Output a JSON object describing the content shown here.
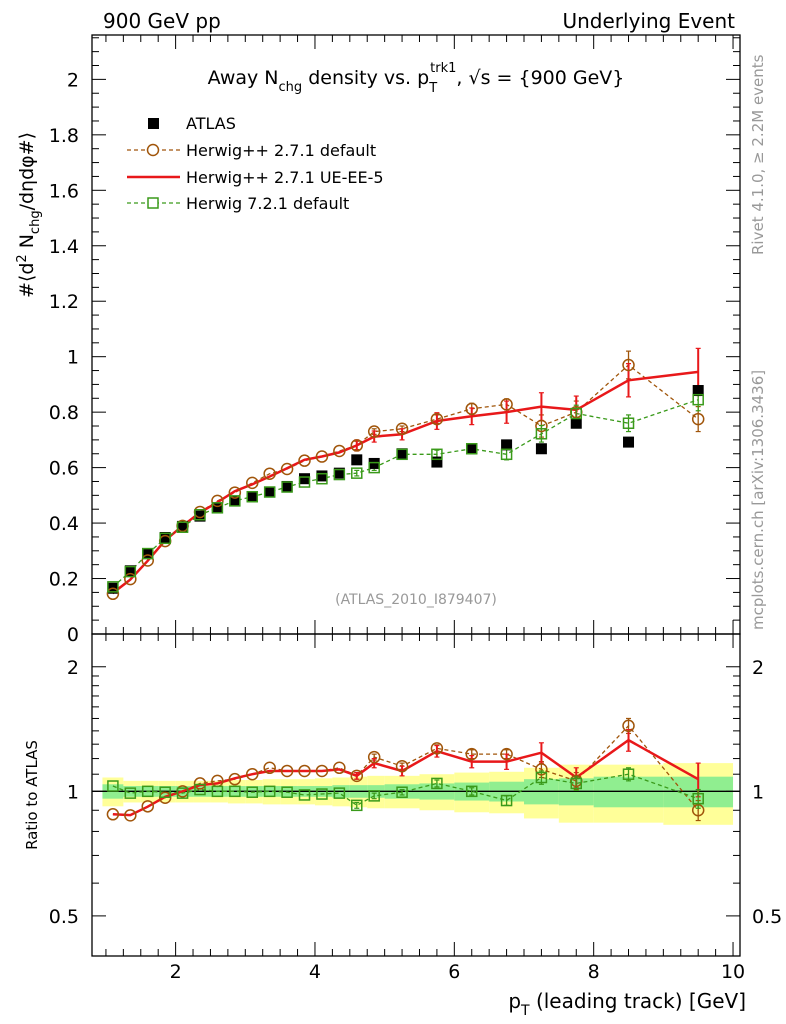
{
  "header": {
    "left": "900 GeV pp",
    "right": "Underlying Event"
  },
  "side_labels": {
    "rivet": "Rivet 4.1.0, ≥ 2.2M events",
    "mcplots": "mcplots.cern.ch [arXiv:1306.3436]"
  },
  "colors": {
    "atlas": "#000000",
    "herwig_default": "#a0550a",
    "herwig_ue": "#e8181a",
    "herwig72": "#3a9a1a",
    "band_green": "#90ee90",
    "band_yellow": "#ffff99"
  },
  "chart_data": [
    {
      "type": "scatter",
      "panel": "main",
      "title": "Away N_chg density vs. p_T^trk1, √s = {900 GeV}",
      "title_parts": {
        "a": "Away N",
        "chg": "chg",
        "b": " density vs. p",
        "T": "T",
        "trk1": "trk1",
        "c": ", √s = {900 GeV}"
      },
      "ylabel": "#⟨d² N_chg/dηdφ#⟩",
      "ylabel_parts": {
        "a": "#⟨d",
        "two": "2",
        "b": " N",
        "chg": "chg",
        "c": "/dηdφ#⟩"
      },
      "watermark": "(ATLAS_2010_I879407)",
      "xlim": [
        0.8,
        10.1
      ],
      "ylim": [
        0,
        2.16
      ],
      "y_ticks": [
        0,
        0.2,
        0.4,
        0.6,
        0.8,
        1,
        1.2,
        1.4,
        1.6,
        1.8,
        2
      ],
      "y_tick_labels": [
        "0",
        "0.2",
        "0.4",
        "0.6",
        "0.8",
        "1",
        "1.2",
        "1.4",
        "1.6",
        "1.8",
        "2"
      ],
      "x": [
        1.1,
        1.35,
        1.6,
        1.85,
        2.1,
        2.35,
        2.6,
        2.85,
        3.1,
        3.35,
        3.6,
        3.85,
        4.1,
        4.35,
        4.6,
        4.85,
        5.25,
        5.75,
        6.25,
        6.75,
        7.25,
        7.75,
        8.5,
        9.5
      ],
      "series": [
        {
          "name": "ATLAS",
          "marker": "filled-square",
          "line": "none",
          "values": [
            0.165,
            0.228,
            0.29,
            0.348,
            0.388,
            0.425,
            0.455,
            0.48,
            0.495,
            0.512,
            0.532,
            0.56,
            0.57,
            0.58,
            0.628,
            0.615,
            0.65,
            0.62,
            0.668,
            0.682,
            0.668,
            0.76,
            0.692,
            0.878
          ],
          "errors": [
            0,
            0,
            0,
            0,
            0,
            0,
            0,
            0,
            0,
            0,
            0,
            0,
            0,
            0,
            0,
            0,
            0,
            0,
            0,
            0,
            0,
            0,
            0,
            0
          ]
        },
        {
          "name": "Herwig++ 2.7.1 default",
          "marker": "open-circle",
          "line": "dashed",
          "values": [
            0.145,
            0.198,
            0.265,
            0.335,
            0.39,
            0.44,
            0.48,
            0.51,
            0.545,
            0.578,
            0.595,
            0.625,
            0.64,
            0.66,
            0.68,
            0.73,
            0.74,
            0.775,
            0.812,
            0.828,
            0.75,
            0.8,
            0.97,
            0.775
          ],
          "errors": [
            0,
            0,
            0,
            0,
            0,
            0,
            0,
            0,
            0,
            0,
            0,
            0,
            0,
            0,
            0.015,
            0.01,
            0.01,
            0.015,
            0.02,
            0.02,
            0.04,
            0.04,
            0.05,
            0.045
          ]
        },
        {
          "name": "Herwig++ 2.7.1 UE-EE-5",
          "marker": "none",
          "line": "solid",
          "values": [
            0.148,
            0.196,
            0.264,
            0.338,
            0.39,
            0.438,
            0.475,
            0.515,
            0.54,
            0.568,
            0.598,
            0.628,
            0.64,
            0.655,
            0.68,
            0.712,
            0.72,
            0.768,
            0.785,
            0.8,
            0.82,
            0.808,
            0.915,
            0.945
          ],
          "errors": [
            0,
            0,
            0,
            0,
            0,
            0,
            0,
            0,
            0,
            0,
            0,
            0,
            0,
            0,
            0.02,
            0.02,
            0.02,
            0.03,
            0.03,
            0.04,
            0.05,
            0.05,
            0.06,
            0.085
          ]
        },
        {
          "name": "Herwig 7.2.1 default",
          "marker": "open-square",
          "line": "dashed",
          "values": [
            0.17,
            0.225,
            0.29,
            0.345,
            0.385,
            0.43,
            0.455,
            0.48,
            0.495,
            0.512,
            0.53,
            0.548,
            0.56,
            0.575,
            0.58,
            0.6,
            0.648,
            0.648,
            0.668,
            0.648,
            0.722,
            0.795,
            0.76,
            0.845
          ],
          "errors": [
            0,
            0,
            0,
            0,
            0,
            0,
            0,
            0,
            0,
            0,
            0,
            0,
            0,
            0,
            0.01,
            0.01,
            0.01,
            0.015,
            0.015,
            0.02,
            0.03,
            0.03,
            0.03,
            0.04
          ]
        }
      ]
    },
    {
      "type": "line",
      "panel": "ratio",
      "ylabel": "Ratio to ATLAS",
      "xlabel": "p_T (leading track) [GeV]",
      "xlabel_parts": {
        "a": "p",
        "T": "T",
        "b": " (leading track) [GeV]"
      },
      "xlim": [
        0.8,
        10.1
      ],
      "ylim_log": [
        0.4,
        2.4
      ],
      "x_ticks": [
        2,
        4,
        6,
        8,
        10
      ],
      "x_tick_labels": [
        "2",
        "4",
        "6",
        "8",
        "10"
      ],
      "y_ticks": [
        0.5,
        1,
        2
      ],
      "y_tick_labels_left": [
        "0.5",
        "1",
        "2"
      ],
      "y_tick_labels_right": [
        "0.5",
        "1",
        "2"
      ],
      "x": [
        1.1,
        1.35,
        1.6,
        1.85,
        2.1,
        2.35,
        2.6,
        2.85,
        3.1,
        3.35,
        3.6,
        3.85,
        4.1,
        4.35,
        4.6,
        4.85,
        5.25,
        5.75,
        6.25,
        6.75,
        7.25,
        7.75,
        8.5,
        9.5
      ],
      "bin_edges": [
        0.95,
        1.25,
        1.5,
        1.75,
        2.0,
        2.25,
        2.5,
        2.75,
        3.0,
        3.25,
        3.5,
        3.75,
        4.0,
        4.25,
        4.5,
        4.75,
        5.0,
        5.5,
        6.0,
        6.5,
        7.0,
        7.5,
        8.0,
        9.0,
        10.0
      ],
      "band_inner": [
        0.04,
        0.03,
        0.03,
        0.03,
        0.03,
        0.03,
        0.03,
        0.03,
        0.03,
        0.03,
        0.03,
        0.03,
        0.03,
        0.035,
        0.035,
        0.035,
        0.04,
        0.045,
        0.05,
        0.055,
        0.07,
        0.075,
        0.085,
        0.085
      ],
      "band_outer": [
        0.08,
        0.06,
        0.06,
        0.06,
        0.06,
        0.06,
        0.06,
        0.065,
        0.065,
        0.07,
        0.07,
        0.07,
        0.075,
        0.08,
        0.085,
        0.09,
        0.09,
        0.1,
        0.11,
        0.115,
        0.14,
        0.16,
        0.16,
        0.17
      ],
      "series": [
        {
          "name": "Herwig++ 2.7.1 default",
          "values": [
            0.88,
            0.875,
            0.92,
            0.965,
            1.0,
            1.045,
            1.06,
            1.07,
            1.1,
            1.14,
            1.12,
            1.12,
            1.12,
            1.14,
            1.09,
            1.21,
            1.15,
            1.27,
            1.23,
            1.23,
            1.13,
            1.06,
            1.44,
            0.9
          ],
          "errors": [
            0,
            0,
            0,
            0,
            0,
            0,
            0,
            0,
            0,
            0,
            0,
            0,
            0,
            0,
            0.02,
            0.02,
            0.02,
            0.025,
            0.03,
            0.03,
            0.05,
            0.05,
            0.06,
            0.05
          ]
        },
        {
          "name": "Herwig++ 2.7.1 UE-EE-5",
          "values": [
            0.88,
            0.876,
            0.918,
            0.97,
            1.0,
            1.035,
            1.045,
            1.075,
            1.1,
            1.12,
            1.12,
            1.12,
            1.12,
            1.13,
            1.09,
            1.17,
            1.12,
            1.25,
            1.18,
            1.18,
            1.24,
            1.08,
            1.33,
            1.07
          ],
          "errors": [
            0,
            0,
            0,
            0,
            0,
            0,
            0,
            0,
            0,
            0,
            0,
            0,
            0,
            0,
            0.02,
            0.03,
            0.03,
            0.04,
            0.04,
            0.05,
            0.07,
            0.06,
            0.08,
            0.1
          ]
        },
        {
          "name": "Herwig 7.2.1 default",
          "values": [
            1.03,
            0.99,
            1.0,
            0.995,
            0.99,
            1.01,
            1.0,
            1.0,
            0.995,
            1.0,
            0.995,
            0.98,
            0.985,
            0.99,
            0.925,
            0.975,
            0.995,
            1.045,
            1.0,
            0.95,
            1.08,
            1.045,
            1.1,
            0.96
          ],
          "errors": [
            0,
            0,
            0,
            0,
            0,
            0,
            0,
            0,
            0,
            0,
            0,
            0,
            0,
            0,
            0.015,
            0.015,
            0.015,
            0.02,
            0.02,
            0.025,
            0.04,
            0.04,
            0.04,
            0.05
          ]
        }
      ]
    }
  ]
}
